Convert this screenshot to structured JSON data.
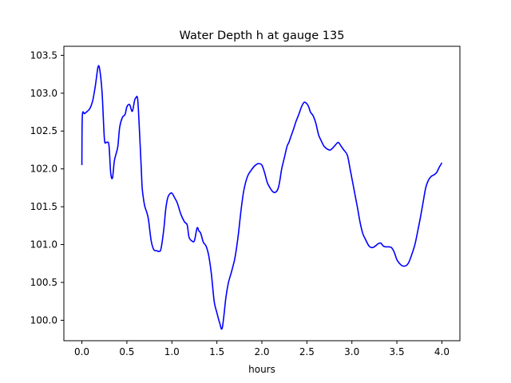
{
  "chart_data": {
    "type": "line",
    "title": "Water Depth h at gauge 135",
    "xlabel": "hours",
    "ylabel": "",
    "xlim": [
      -0.2,
      4.2
    ],
    "ylim": [
      99.73,
      103.62
    ],
    "x_ticks": [
      0.0,
      0.5,
      1.0,
      1.5,
      2.0,
      2.5,
      3.0,
      3.5,
      4.0
    ],
    "x_tick_labels": [
      "0.0",
      "0.5",
      "1.0",
      "1.5",
      "2.0",
      "2.5",
      "3.0",
      "3.5",
      "4.0"
    ],
    "y_ticks": [
      100.0,
      100.5,
      101.0,
      101.5,
      102.0,
      102.5,
      103.0,
      103.5
    ],
    "y_tick_labels": [
      "100.0",
      "100.5",
      "101.0",
      "101.5",
      "102.0",
      "102.5",
      "103.0",
      "103.5"
    ],
    "grid": false,
    "line_color": "#0000ff",
    "series": [
      {
        "x": [
          0.0,
          0.005,
          0.03,
          0.06,
          0.09,
          0.12,
          0.15,
          0.18,
          0.2,
          0.225,
          0.25,
          0.27,
          0.3,
          0.32,
          0.34,
          0.36,
          0.38,
          0.4,
          0.42,
          0.45,
          0.48,
          0.5,
          0.53,
          0.56,
          0.585,
          0.6,
          0.62,
          0.64,
          0.66,
          0.67,
          0.685,
          0.7,
          0.72,
          0.74,
          0.77,
          0.8,
          0.83,
          0.86,
          0.88,
          0.91,
          0.93,
          0.95,
          0.97,
          1.0,
          1.03,
          1.06,
          1.1,
          1.14,
          1.17,
          1.19,
          1.22,
          1.25,
          1.28,
          1.3,
          1.32,
          1.35,
          1.38,
          1.41,
          1.44,
          1.47,
          1.5,
          1.53,
          1.56,
          1.6,
          1.625,
          1.645,
          1.66,
          1.68,
          1.7,
          1.72,
          1.74,
          1.77,
          1.8,
          1.84,
          1.88,
          1.92,
          1.96,
          2.0,
          2.03,
          2.06,
          2.09,
          2.12,
          2.15,
          2.18,
          2.2,
          2.22,
          2.25,
          2.28,
          2.3,
          2.32,
          2.35,
          2.38,
          2.41,
          2.44,
          2.47,
          2.5,
          2.52,
          2.54,
          2.57,
          2.6,
          2.63,
          2.66,
          2.69,
          2.73,
          2.76,
          2.79,
          2.82,
          2.85,
          2.88,
          2.91,
          2.95,
          2.98,
          3.02,
          3.06,
          3.09,
          3.12,
          3.15,
          3.18,
          3.2,
          3.23,
          3.26,
          3.29,
          3.32,
          3.35,
          3.38,
          3.41,
          3.44,
          3.47,
          3.5,
          3.53,
          3.56,
          3.6,
          3.63,
          3.66,
          3.7,
          3.73,
          3.76,
          3.79,
          3.82,
          3.85,
          3.88,
          3.91,
          3.94,
          3.97,
          4.0
        ],
        "y": [
          102.05,
          102.7,
          102.73,
          102.76,
          102.8,
          102.9,
          103.1,
          103.35,
          103.3,
          103.0,
          102.4,
          102.35,
          102.32,
          101.95,
          101.88,
          102.1,
          102.2,
          102.3,
          102.55,
          102.68,
          102.72,
          102.82,
          102.85,
          102.76,
          102.9,
          102.94,
          102.92,
          102.5,
          102.0,
          101.75,
          101.6,
          101.5,
          101.43,
          101.33,
          101.05,
          100.93,
          100.92,
          100.91,
          100.95,
          101.2,
          101.45,
          101.6,
          101.66,
          101.68,
          101.62,
          101.55,
          101.4,
          101.3,
          101.26,
          101.1,
          101.05,
          101.05,
          101.22,
          101.18,
          101.15,
          101.03,
          100.98,
          100.85,
          100.6,
          100.25,
          100.1,
          99.97,
          99.9,
          100.3,
          100.48,
          100.57,
          100.63,
          100.72,
          100.82,
          100.97,
          101.15,
          101.47,
          101.72,
          101.9,
          101.98,
          102.04,
          102.07,
          102.05,
          101.95,
          101.82,
          101.75,
          101.7,
          101.69,
          101.74,
          101.85,
          102.0,
          102.15,
          102.3,
          102.35,
          102.42,
          102.52,
          102.63,
          102.72,
          102.82,
          102.88,
          102.86,
          102.82,
          102.75,
          102.7,
          102.6,
          102.45,
          102.37,
          102.3,
          102.26,
          102.25,
          102.28,
          102.32,
          102.35,
          102.3,
          102.25,
          102.18,
          102.0,
          101.75,
          101.5,
          101.3,
          101.15,
          101.07,
          101.0,
          100.97,
          100.96,
          100.98,
          101.01,
          101.02,
          100.98,
          100.97,
          100.97,
          100.96,
          100.9,
          100.8,
          100.75,
          100.72,
          100.72,
          100.76,
          100.85,
          101.0,
          101.17,
          101.35,
          101.55,
          101.75,
          101.85,
          101.9,
          101.92,
          101.95,
          102.02,
          102.08
        ]
      }
    ]
  }
}
